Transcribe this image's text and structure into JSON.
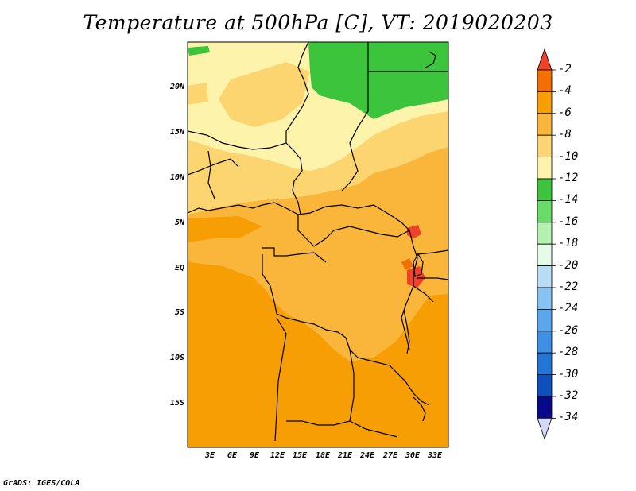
{
  "title": "Temperature at 500hPa [C], VT: 2019020203",
  "credit": "GrADS: IGES/COLA",
  "y_ticks": [
    "20N",
    "15N",
    "10N",
    "5N",
    "EQ",
    "5S",
    "10S",
    "15S"
  ],
  "x_ticks": [
    "3E",
    "6E",
    "9E",
    "12E",
    "15E",
    "18E",
    "21E",
    "24E",
    "27E",
    "30E",
    "33E"
  ],
  "colorbar": {
    "labels": [
      "-2",
      "-4",
      "-6",
      "-8",
      "-10",
      "-12",
      "-14",
      "-16",
      "-18",
      "-20",
      "-22",
      "-24",
      "-26",
      "-28",
      "-30",
      "-32",
      "-34"
    ],
    "colors": [
      "#f0412a",
      "#f56f00",
      "#f79e04",
      "#fab63a",
      "#fcd570",
      "#fdf3ab",
      "#3cc43c",
      "#67dc67",
      "#b2f2ae",
      "#e3fbe7",
      "#b6dcf6",
      "#86c3f2",
      "#5aa7ed",
      "#3e90e6",
      "#2176d8",
      "#0e4fbe",
      "#08088a",
      "#d4d8f7"
    ]
  },
  "legend_colors": {
    "orange_dark": "#f79e04",
    "orange_mid": "#fab63a",
    "yellow": "#fcd570",
    "pale_yellow": "#fdf3ab",
    "green": "#3cc43c",
    "red": "#f0412a"
  }
}
